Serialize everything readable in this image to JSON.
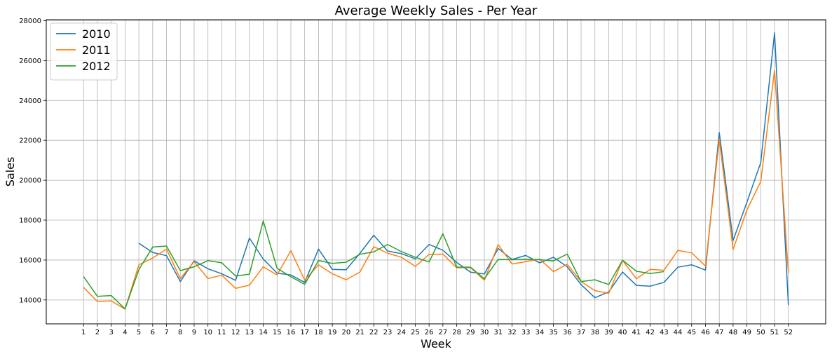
{
  "chart_data": {
    "type": "line",
    "title": "Average Weekly Sales - Per Year",
    "xlabel": "Week",
    "ylabel": "Sales",
    "x": [
      1,
      2,
      3,
      4,
      5,
      6,
      7,
      8,
      9,
      10,
      11,
      12,
      13,
      14,
      15,
      16,
      17,
      18,
      19,
      20,
      21,
      22,
      23,
      24,
      25,
      26,
      27,
      28,
      29,
      30,
      31,
      32,
      33,
      34,
      35,
      36,
      37,
      38,
      39,
      40,
      41,
      42,
      43,
      44,
      45,
      46,
      47,
      48,
      49,
      50,
      51,
      52
    ],
    "ylim": [
      12800,
      28050
    ],
    "yticks": [
      14000,
      16000,
      18000,
      20000,
      22000,
      24000,
      26000,
      28000
    ],
    "grid": true,
    "legend_position": "top-left",
    "series": [
      {
        "name": "2010",
        "color": "#1f77b4",
        "values": [
          null,
          null,
          null,
          null,
          16840,
          16380,
          16220,
          14920,
          15960,
          15560,
          15310,
          14980,
          17100,
          16050,
          15340,
          15250,
          14880,
          16550,
          15530,
          15510,
          16340,
          17240,
          16450,
          16320,
          16060,
          16780,
          16490,
          15880,
          15390,
          15300,
          16580,
          16030,
          16230,
          15860,
          16140,
          15660,
          14770,
          14110,
          14400,
          15400,
          14730,
          14690,
          14880,
          15640,
          15760,
          15500,
          22390,
          16980,
          18900,
          20880,
          27390,
          13740
        ]
      },
      {
        "name": "2011",
        "color": "#ff7f0e",
        "values": [
          14630,
          13920,
          13950,
          13540,
          15760,
          16100,
          16550,
          15070,
          15920,
          15070,
          15240,
          14580,
          14740,
          15660,
          15250,
          16470,
          14990,
          15760,
          15310,
          15010,
          15400,
          16670,
          16340,
          16140,
          15680,
          16280,
          16300,
          15610,
          15620,
          14990,
          16770,
          15800,
          15920,
          16050,
          15420,
          15790,
          14920,
          14470,
          14330,
          15990,
          15060,
          15530,
          15490,
          16480,
          16360,
          15700,
          22040,
          16530,
          18510,
          19930,
          25510,
          15330
        ]
      },
      {
        "name": "2012",
        "color": "#2ca02c",
        "values": [
          15170,
          14180,
          14220,
          13550,
          15520,
          16650,
          16700,
          15470,
          15660,
          15970,
          15860,
          15200,
          15290,
          17960,
          15590,
          15160,
          14780,
          15970,
          15830,
          15890,
          16290,
          16410,
          16780,
          16420,
          16140,
          15900,
          17320,
          15640,
          15640,
          15060,
          16030,
          16020,
          16040,
          16020,
          15950,
          16300,
          14920,
          15010,
          14770,
          15990,
          15440,
          15320,
          15420,
          null,
          null,
          null,
          null,
          null,
          null,
          null,
          null,
          null
        ]
      }
    ]
  }
}
